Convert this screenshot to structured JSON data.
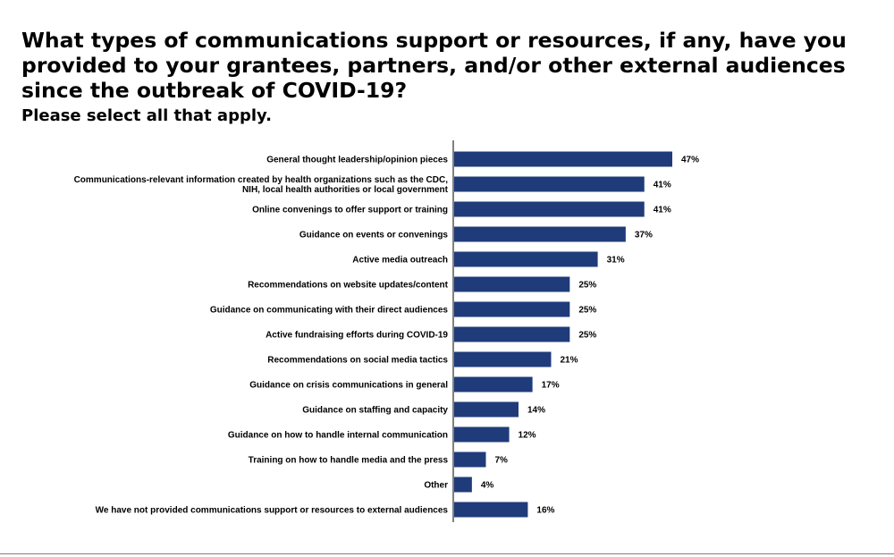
{
  "title": "What types of communications support or resources, if any, have you provided to your grantees, partners, and/or other external audiences since the outbreak of COVID-19?",
  "subtitle": "Please select all that apply.",
  "colors": {
    "bar": "#1f3b7a",
    "axis": "#000000"
  },
  "chart_data": {
    "type": "bar",
    "orientation": "horizontal",
    "categories": [
      [
        "General thought leadership/opinion pieces"
      ],
      [
        "Communications-relevant information created by health organizations such as the CDC,",
        "NIH, local health authorities or local government"
      ],
      [
        "Online convenings to offer support or training"
      ],
      [
        "Guidance on events or convenings"
      ],
      [
        "Active media outreach"
      ],
      [
        "Recommendations on website updates/content"
      ],
      [
        "Guidance on communicating with their direct audiences"
      ],
      [
        "Active fundraising efforts during COVID-19"
      ],
      [
        "Recommendations on social media tactics"
      ],
      [
        "Guidance on crisis communications in general"
      ],
      [
        "Guidance on staffing and capacity"
      ],
      [
        "Guidance on how to handle internal communication"
      ],
      [
        "Training on how to handle media and the press"
      ],
      [
        "Other"
      ],
      [
        "We have not provided communications support or resources to external audiences"
      ]
    ],
    "values": [
      47,
      41,
      41,
      37,
      31,
      25,
      25,
      25,
      21,
      17,
      14,
      12,
      7,
      4,
      16
    ],
    "value_labels": [
      "47%",
      "41%",
      "41%",
      "37%",
      "31%",
      "25%",
      "25%",
      "25%",
      "21%",
      "17%",
      "14%",
      "12%",
      "7%",
      "4%",
      "16%"
    ],
    "value_suffix": "%",
    "xlim": [
      0,
      47
    ],
    "grid": false,
    "legend": "none"
  }
}
